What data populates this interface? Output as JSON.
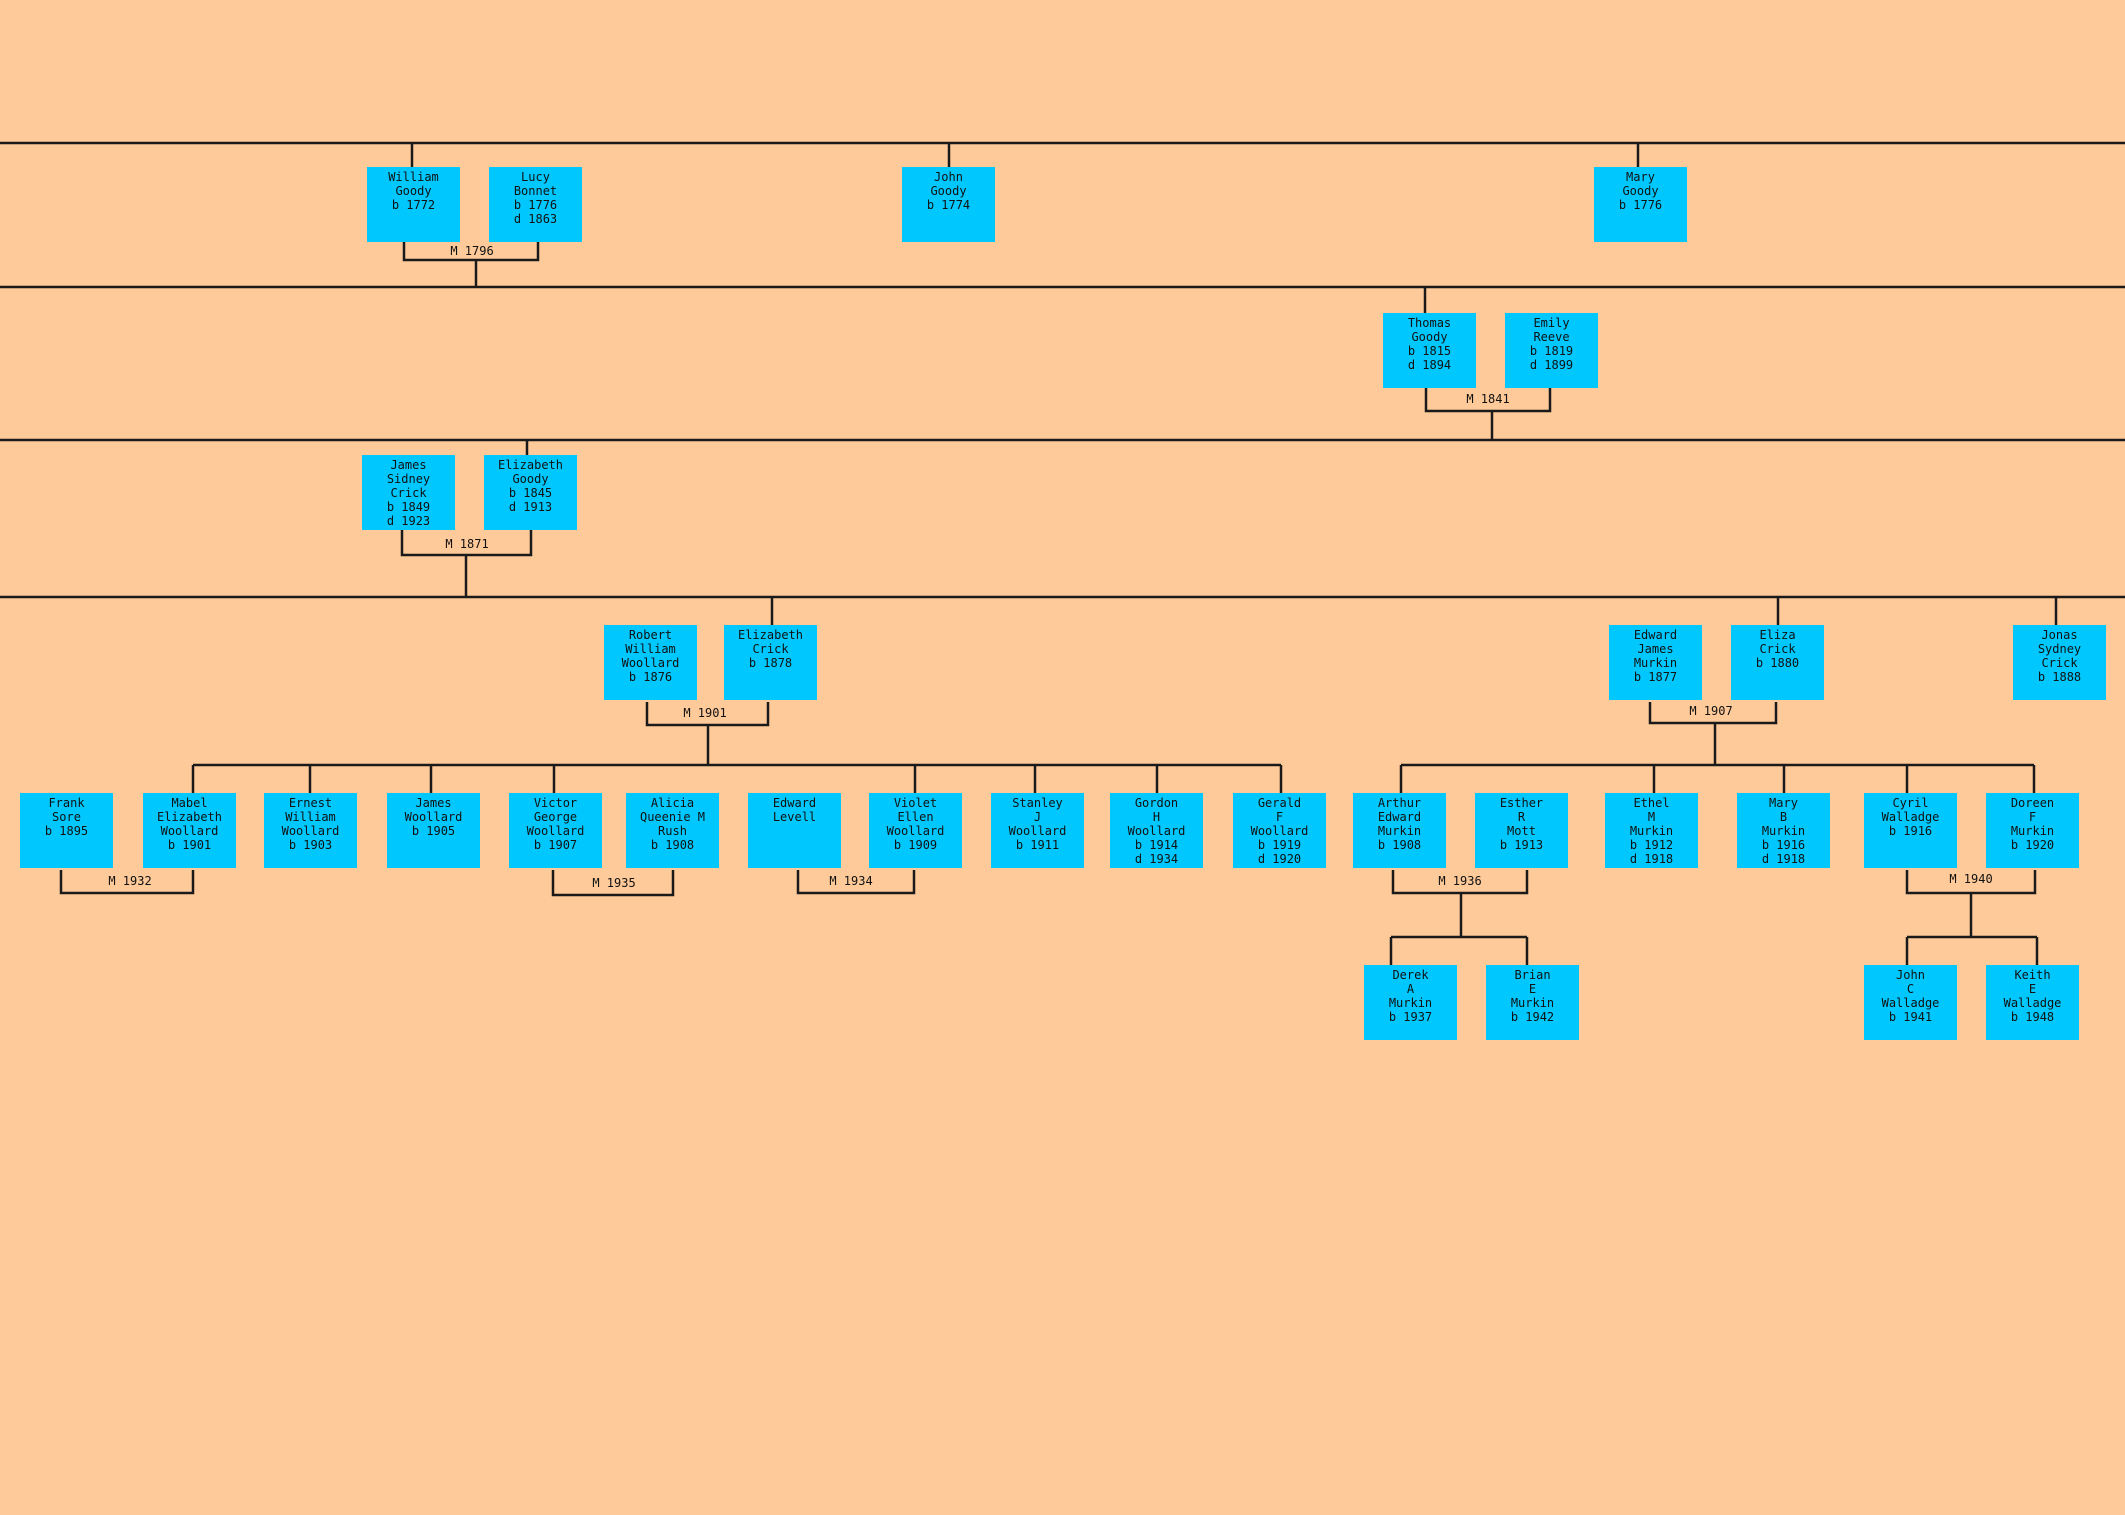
{
  "colors": {
    "background": "#FFCA99",
    "box": "#00C8FF",
    "line": "#1A1A1A"
  },
  "people": {
    "william_goody": "William\nGoody\nb 1772",
    "lucy_bonnet": "Lucy\nBonnet\nb 1776\nd 1863",
    "john_goody": "John\nGoody\nb 1774",
    "mary_goody_1776": "Mary\nGoody\nb 1776",
    "thomas_goody": "Thomas\nGoody\nb 1815\nd 1894",
    "emily_reeve": "Emily\nReeve\nb 1819\nd 1899",
    "james_sidney_crick": "James\nSidney\nCrick\nb 1849\nd 1923",
    "elizabeth_goody": "Elizabeth\nGoody\nb 1845\nd 1913",
    "robert_william_woollard": "Robert\nWilliam\nWoollard\nb 1876",
    "elizabeth_crick": "Elizabeth\nCrick\nb 1878",
    "edward_james_murkin": "Edward\nJames\nMurkin\nb 1877",
    "eliza_crick": "Eliza\nCrick\nb 1880",
    "jonas_sydney_crick": "Jonas\nSydney\nCrick\nb 1888",
    "frank_sore": "Frank\nSore\nb 1895",
    "mabel_elizabeth_woollard": "Mabel\nElizabeth\nWoollard\nb 1901",
    "ernest_william_woollard": "Ernest\nWilliam\nWoollard\nb 1903",
    "james_woollard": "James\nWoollard\nb 1905",
    "victor_george_woollard": "Victor\nGeorge\nWoollard\nb 1907",
    "alicia_queenie_rush": "Alicia\nQueenie M\nRush\nb 1908",
    "edward_levell": "Edward\nLevell",
    "violet_ellen_woollard": "Violet\nEllen\nWoollard\nb 1909",
    "stanley_j_woollard": "Stanley\nJ\nWoollard\nb 1911",
    "gordon_h_woollard": "Gordon\nH\nWoollard\nb 1914\nd 1934",
    "gerald_f_woollard": "Gerald\nF\nWoollard\nb 1919\nd 1920",
    "arthur_edward_murkin": "Arthur\nEdward\nMurkin\nb 1908",
    "esther_r_mott": "Esther\nR\nMott\nb 1913",
    "ethel_m_murkin": "Ethel\nM\nMurkin\nb 1912\nd 1918",
    "mary_b_murkin": "Mary\nB\nMurkin\nb 1916\nd 1918",
    "cyril_walladge": "Cyril\nWalladge\nb 1916",
    "doreen_f_murkin": "Doreen\nF\nMurkin\nb 1920",
    "derek_a_murkin": "Derek\nA\nMurkin\nb 1937",
    "brian_e_murkin": "Brian\nE\nMurkin\nb 1942",
    "john_c_walladge": "John\nC\nWalladge\nb 1941",
    "keith_e_walladge": "Keith\nE\nWalladge\nb 1948"
  },
  "marriages": {
    "m1796": "M 1796",
    "m1841": "M 1841",
    "m1871": "M 1871",
    "m1901": "M 1901",
    "m1907": "M 1907",
    "m1932": "M 1932",
    "m1935": "M 1935",
    "m1934": "M 1934",
    "m1936": "M 1936",
    "m1940": "M 1940"
  }
}
